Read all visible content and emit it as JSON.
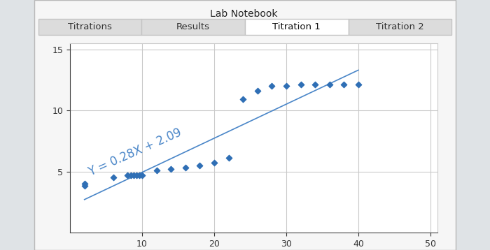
{
  "notebook": {
    "title": "Lab Notebook",
    "tabs": [
      "Titrations",
      "Results",
      "Titration 1",
      "Titration 2"
    ],
    "active_tab": "Titration 1"
  },
  "chart_data": {
    "type": "scatter",
    "series": [
      {
        "type": "scatter",
        "color": "#2f6fb5",
        "marker": "diamond",
        "x": [
          2,
          2,
          6,
          8,
          8.4,
          8.8,
          9.2,
          9.6,
          10,
          12,
          14,
          16,
          18,
          20,
          22,
          24,
          26,
          28,
          30,
          32,
          34,
          36,
          38,
          40
        ],
        "values": [
          4.0,
          3.8,
          4.5,
          4.7,
          4.7,
          4.7,
          4.7,
          4.7,
          4.7,
          5.1,
          5.2,
          5.3,
          5.5,
          5.7,
          6.1,
          10.9,
          11.6,
          12.0,
          12.0,
          12.1,
          12.1,
          12.1,
          12.1,
          12.1
        ]
      },
      {
        "type": "line",
        "color": "#4a86c8",
        "line_style": "solid",
        "x": [
          2,
          40
        ],
        "values": [
          2.7,
          13.3
        ]
      }
    ],
    "annotations": [
      {
        "text": "Y = 0.28X + 2.09",
        "x": 3,
        "y": 4.4,
        "color": "#4a86c8"
      }
    ],
    "xlim": [
      0,
      51
    ],
    "xticks": [
      10,
      20,
      30,
      40,
      50
    ],
    "ylim": [
      0,
      15.5
    ],
    "yticks": [
      5,
      10,
      15
    ],
    "grid": true
  }
}
